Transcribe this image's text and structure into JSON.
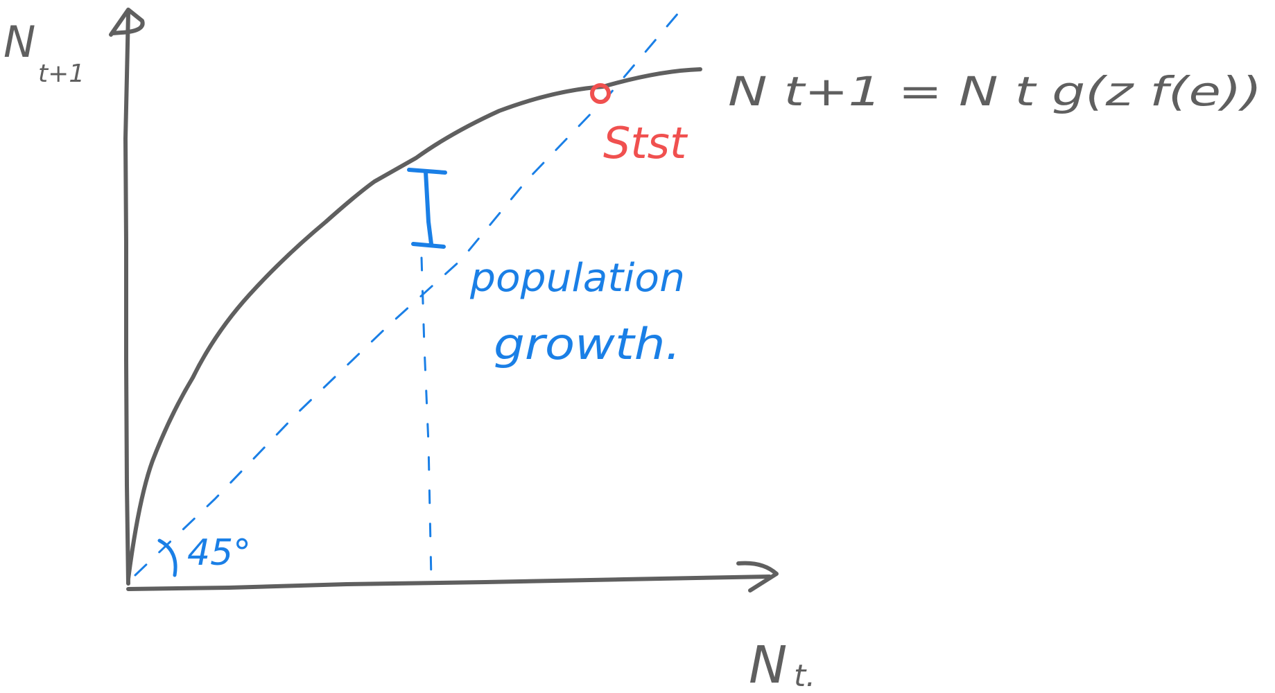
{
  "axes": {
    "y_label_main": "N",
    "y_label_sub": "t+1",
    "x_label_main": "N",
    "x_label_sub": "t."
  },
  "curve_equation": "N t+1 = N t g(z f(e))",
  "steady_state_label": "Stst",
  "gap_label_line1": "population",
  "gap_label_line2": "growth.",
  "reference_line_angle": "45°",
  "colors": {
    "axes_and_curve": "#5f5f5f",
    "reference_line": "#1a7fe6",
    "steady_state": "#f0504f"
  }
}
